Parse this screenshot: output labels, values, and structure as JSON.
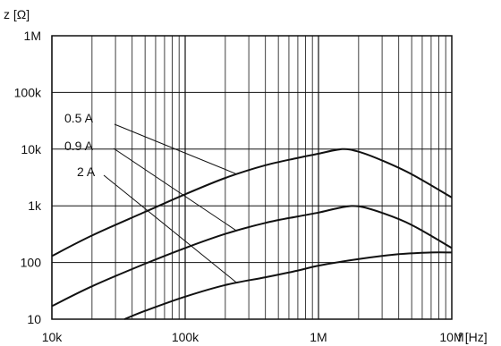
{
  "chart_data": {
    "type": "line",
    "title": "",
    "xlabel": "f [Hz]",
    "ylabel": "z [Ω]",
    "xscale": "log",
    "yscale": "log",
    "xlim": [
      10000,
      10000000
    ],
    "ylim": [
      10,
      1000000
    ],
    "grid": true,
    "x_tick_labels": [
      "10k",
      "100k",
      "1M",
      "10M"
    ],
    "y_tick_labels": [
      "1M",
      "100k",
      "10k",
      "1k",
      "100",
      "10"
    ],
    "series": [
      {
        "name": "0.5 A",
        "points": [
          [
            10000,
            130
          ],
          [
            20000,
            300
          ],
          [
            50000,
            780
          ],
          [
            100000,
            1600
          ],
          [
            200000,
            3100
          ],
          [
            400000,
            5200
          ],
          [
            700000,
            7000
          ],
          [
            1000000,
            8300
          ],
          [
            1500000,
            10000
          ],
          [
            2000000,
            9000
          ],
          [
            3000000,
            6300
          ],
          [
            5000000,
            3600
          ],
          [
            10000000,
            1400
          ]
        ]
      },
      {
        "name": "0.9 A",
        "points": [
          [
            10000,
            17
          ],
          [
            20000,
            38
          ],
          [
            50000,
            95
          ],
          [
            100000,
            180
          ],
          [
            200000,
            320
          ],
          [
            400000,
            500
          ],
          [
            700000,
            650
          ],
          [
            1000000,
            760
          ],
          [
            1500000,
            940
          ],
          [
            2000000,
            980
          ],
          [
            3000000,
            750
          ],
          [
            5000000,
            460
          ],
          [
            10000000,
            180
          ]
        ]
      },
      {
        "name": "2 A",
        "points": [
          [
            35000,
            10
          ],
          [
            50000,
            14
          ],
          [
            100000,
            25
          ],
          [
            200000,
            40
          ],
          [
            400000,
            55
          ],
          [
            700000,
            72
          ],
          [
            1000000,
            88
          ],
          [
            2000000,
            115
          ],
          [
            4000000,
            140
          ],
          [
            7000000,
            150
          ],
          [
            10000000,
            150
          ]
        ]
      }
    ],
    "curve_labels": [
      "0.5 A",
      "0.9 A",
      "2 A"
    ]
  }
}
